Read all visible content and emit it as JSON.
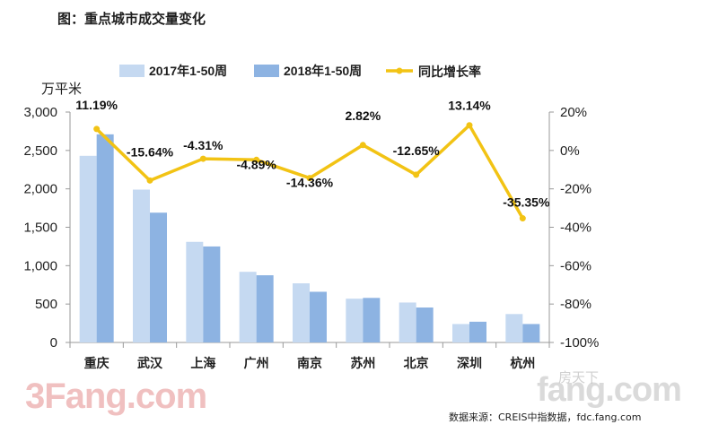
{
  "title": "图：重点城市成交量变化",
  "source": "数据来源：CREIS中指数据，fdc.fang.com",
  "watermark_left": "3Fang.com",
  "watermark_right": "fang.com",
  "watermark_small": "房天下",
  "chart_data": {
    "type": "bar",
    "categories": [
      "重庆",
      "武汉",
      "上海",
      "广州",
      "南京",
      "苏州",
      "北京",
      "深圳",
      "杭州"
    ],
    "series": [
      {
        "name": "2017年1-50周",
        "type": "bar",
        "axis": "left",
        "color": "#c5d9f1",
        "values": [
          2430,
          1990,
          1310,
          920,
          770,
          570,
          520,
          240,
          370
        ]
      },
      {
        "name": "2018年1-50周",
        "type": "bar",
        "axis": "left",
        "color": "#8db3e2",
        "values": [
          2710,
          1690,
          1250,
          875,
          660,
          580,
          455,
          270,
          240
        ]
      },
      {
        "name": "同比增长率",
        "type": "line",
        "axis": "right",
        "color": "#f2c314",
        "values": [
          11.19,
          -15.64,
          -4.31,
          -4.89,
          -14.36,
          2.82,
          -12.65,
          13.14,
          -35.35
        ],
        "labels": [
          "11.19%",
          "-15.64%",
          "-4.31%",
          "-4.89%",
          "-14.36%",
          "2.82%",
          "-12.65%",
          "13.14%",
          "-35.35%"
        ]
      }
    ],
    "ylabel_left": "万平米",
    "ylim_left": [
      0,
      3000
    ],
    "yticks_left": [
      "0",
      "500",
      "1,000",
      "1,500",
      "2,000",
      "2,500",
      "3,000"
    ],
    "ylim_right": [
      -100,
      20
    ],
    "yticks_right": [
      "-100%",
      "-80%",
      "-60%",
      "-40%",
      "-20%",
      "0%",
      "20%"
    ],
    "legend_position": "top",
    "grid": false
  }
}
